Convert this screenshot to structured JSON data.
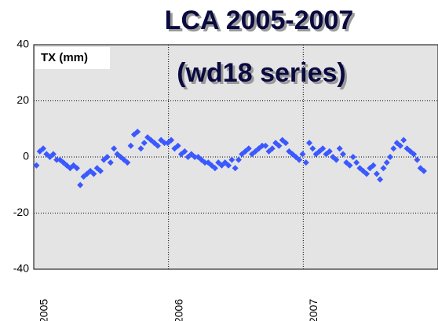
{
  "chart_data": {
    "type": "scatter",
    "title": "LCA 2005-2007",
    "subtitle": "(wd18 series)",
    "y_label": "TX (mm)",
    "color": "#3a58ff",
    "grid": true,
    "xlim": [
      2005,
      2008
    ],
    "xticks": [
      2005,
      2006,
      2007
    ],
    "ylim": [
      -40,
      40
    ],
    "yticks": [
      -40,
      -20,
      0,
      20,
      40
    ],
    "x": [
      2005.02,
      2005.045,
      2005.07,
      2005.095,
      2005.12,
      2005.145,
      2005.17,
      2005.195,
      2005.22,
      2005.245,
      2005.27,
      2005.295,
      2005.32,
      2005.345,
      2005.37,
      2005.395,
      2005.42,
      2005.445,
      2005.47,
      2005.495,
      2005.52,
      2005.545,
      2005.57,
      2005.595,
      2005.62,
      2005.645,
      2005.67,
      2005.695,
      2005.72,
      2005.745,
      2005.77,
      2005.795,
      2005.82,
      2005.845,
      2005.87,
      2005.895,
      2005.92,
      2005.945,
      2005.97,
      2005.995,
      2006.02,
      2006.045,
      2006.07,
      2006.095,
      2006.12,
      2006.145,
      2006.17,
      2006.195,
      2006.22,
      2006.245,
      2006.27,
      2006.295,
      2006.32,
      2006.345,
      2006.37,
      2006.395,
      2006.42,
      2006.445,
      2006.47,
      2006.495,
      2006.52,
      2006.545,
      2006.57,
      2006.595,
      2006.62,
      2006.645,
      2006.67,
      2006.695,
      2006.72,
      2006.745,
      2006.77,
      2006.795,
      2006.82,
      2006.845,
      2006.87,
      2006.895,
      2006.92,
      2006.945,
      2006.97,
      2006.995,
      2007.02,
      2007.045,
      2007.07,
      2007.095,
      2007.12,
      2007.145,
      2007.17,
      2007.195,
      2007.22,
      2007.245,
      2007.27,
      2007.295,
      2007.32,
      2007.345,
      2007.37,
      2007.395,
      2007.42,
      2007.445,
      2007.47,
      2007.495,
      2007.52,
      2007.545,
      2007.57,
      2007.595,
      2007.62,
      2007.645,
      2007.67,
      2007.695,
      2007.72,
      2007.745,
      2007.77,
      2007.795,
      2007.82,
      2007.845,
      2007.87,
      2007.895
    ],
    "values": [
      -3,
      2,
      3,
      1,
      0,
      1,
      -1,
      -1,
      -2,
      -3,
      -4,
      -3,
      -4,
      -10,
      -7,
      -6,
      -5,
      -6,
      -4,
      -5,
      -1,
      0,
      -2,
      3,
      1,
      0,
      -1,
      -2,
      4,
      8,
      9,
      3,
      5,
      7,
      6,
      5,
      4,
      6,
      5,
      5,
      6,
      3,
      4,
      1,
      2,
      0,
      1,
      0,
      0,
      -1,
      -2,
      -2,
      -3,
      -4,
      -2,
      -3,
      -2,
      -3,
      -1,
      -4,
      -1,
      1,
      2,
      3,
      1,
      2,
      3,
      4,
      4,
      2,
      3,
      5,
      4,
      6,
      5,
      2,
      1,
      0,
      -1,
      1,
      -2,
      5,
      3,
      1,
      2,
      3,
      1,
      2,
      0,
      -1,
      3,
      1,
      -2,
      -3,
      0,
      -2,
      -4,
      -5,
      -6,
      -4,
      -3,
      -6,
      -8,
      -4,
      -2,
      0,
      3,
      5,
      4,
      6,
      3,
      2,
      1,
      -1,
      -4,
      -5
    ]
  }
}
